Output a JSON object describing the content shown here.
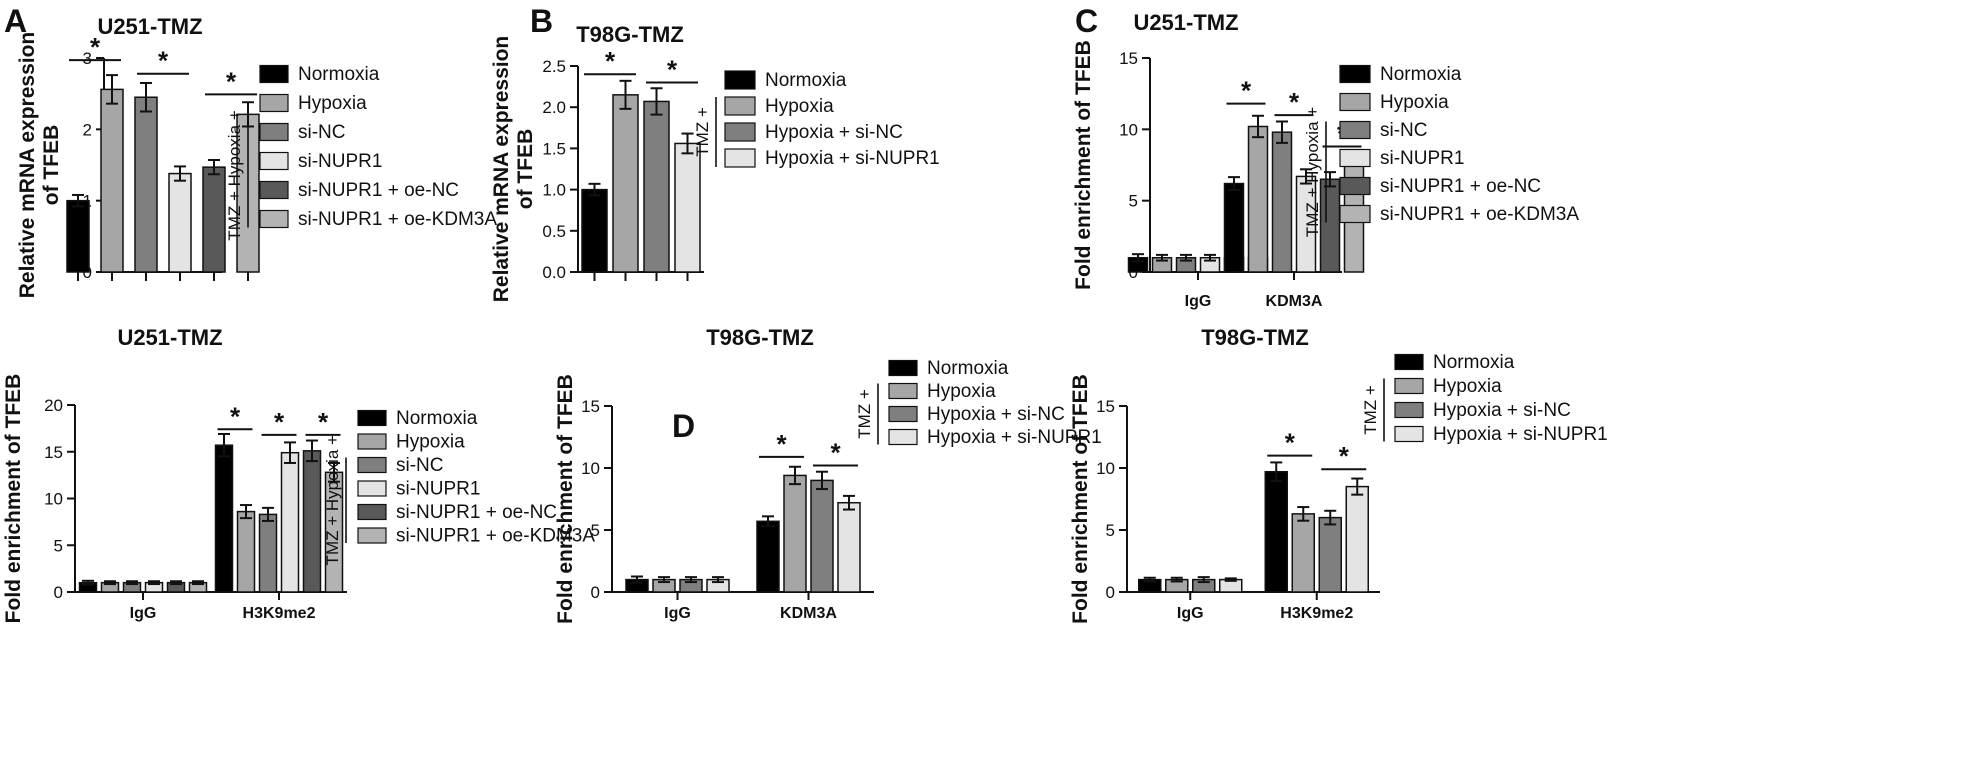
{
  "colors": {
    "Normoxia": "#000000",
    "Hypoxia": "#a6a6a6",
    "si-NC": "#7f7f7f",
    "si-NUPR1": "#e4e4e4",
    "si-NUPR1 + oe-NC": "#595959",
    "si-NUPR1 + oe-KDM3A": "#b3b3b3",
    "Hypoxia + si-NC": "#7f7f7f",
    "Hypoxia + si-NUPR1": "#e4e4e4"
  },
  "panel_letters": [
    "A",
    "B",
    "C",
    "D"
  ],
  "chart_data": [
    {
      "id": "A",
      "type": "bar",
      "title": "U251-TMZ",
      "ylabel": "Relative mRNA expression\nof TFEB",
      "xlabel": "",
      "ylim": [
        0,
        3
      ],
      "yticks": [
        0,
        1,
        2,
        3
      ],
      "categories": [
        ""
      ],
      "series": [
        {
          "name": "Normoxia",
          "values": [
            1.0
          ],
          "errors": [
            0.08
          ]
        },
        {
          "name": "Hypoxia",
          "values": [
            2.56
          ],
          "errors": [
            0.2
          ]
        },
        {
          "name": "si-NC",
          "values": [
            2.45
          ],
          "errors": [
            0.2
          ]
        },
        {
          "name": "si-NUPR1",
          "values": [
            1.38
          ],
          "errors": [
            0.1
          ]
        },
        {
          "name": "si-NUPR1 + oe-NC",
          "values": [
            1.47
          ],
          "errors": [
            0.1
          ]
        },
        {
          "name": "si-NUPR1 + oe-KDM3A",
          "values": [
            2.21
          ],
          "errors": [
            0.17
          ]
        }
      ],
      "significance": [
        {
          "category": 0,
          "from": 0,
          "to": 1,
          "y": 2.97,
          "label": "*"
        },
        {
          "category": 0,
          "from": 2,
          "to": 3,
          "y": 2.78,
          "label": "*"
        },
        {
          "category": 0,
          "from": 4,
          "to": 5,
          "y": 2.49,
          "label": "*"
        }
      ],
      "group_label": "TMZ + Hypoxia +",
      "group_first_index": 2
    },
    {
      "id": "B",
      "type": "bar",
      "title": "T98G-TMZ",
      "ylabel": "Relative mRNA expression\nof TFEB",
      "xlabel": "",
      "ylim": [
        0,
        2.5
      ],
      "yticks": [
        0.0,
        0.5,
        1.0,
        1.5,
        2.0,
        2.5
      ],
      "categories": [
        ""
      ],
      "series": [
        {
          "name": "Normoxia",
          "values": [
            1.0
          ],
          "errors": [
            0.07
          ]
        },
        {
          "name": "Hypoxia",
          "values": [
            2.15
          ],
          "errors": [
            0.17
          ]
        },
        {
          "name": "Hypoxia + si-NC",
          "values": [
            2.07
          ],
          "errors": [
            0.16
          ]
        },
        {
          "name": "Hypoxia + si-NUPR1",
          "values": [
            1.56
          ],
          "errors": [
            0.12
          ]
        }
      ],
      "significance": [
        {
          "category": 0,
          "from": 0,
          "to": 1,
          "y": 2.4,
          "label": "*"
        },
        {
          "category": 0,
          "from": 2,
          "to": 3,
          "y": 2.3,
          "label": "*"
        }
      ],
      "group_label": "TMZ +",
      "group_first_index": 1
    },
    {
      "id": "C",
      "type": "bar",
      "title": "U251-TMZ",
      "ylabel": "Fold enrichment of TFEB",
      "xlabel": "",
      "ylim": [
        0,
        15
      ],
      "yticks": [
        0,
        5,
        10,
        15
      ],
      "categories": [
        "IgG",
        "KDM3A"
      ],
      "series": [
        {
          "name": "Normoxia",
          "values": [
            1.0,
            6.2
          ],
          "errors": [
            0.25,
            0.45
          ]
        },
        {
          "name": "Hypoxia",
          "values": [
            1.0,
            10.2
          ],
          "errors": [
            0.2,
            0.75
          ]
        },
        {
          "name": "si-NC",
          "values": [
            1.0,
            9.8
          ],
          "errors": [
            0.2,
            0.75
          ]
        },
        {
          "name": "si-NUPR1",
          "values": [
            1.0,
            6.7
          ],
          "errors": [
            0.2,
            0.5
          ]
        },
        {
          "name": "si-NUPR1 + oe-NC",
          "values": [
            1.0,
            6.5
          ],
          "errors": [
            0.2,
            0.5
          ]
        },
        {
          "name": "si-NUPR1 + oe-KDM3A",
          "values": [
            1.0,
            7.8
          ],
          "errors": [
            0.2,
            0.35
          ]
        }
      ],
      "significance": [
        {
          "category": 1,
          "from": 0,
          "to": 1,
          "y": 11.8,
          "label": "*"
        },
        {
          "category": 1,
          "from": 2,
          "to": 3,
          "y": 11.0,
          "label": "*"
        },
        {
          "category": 1,
          "from": 4,
          "to": 5,
          "y": 8.8,
          "label": "*"
        }
      ],
      "group_label": "TMZ + Hypoxia +",
      "group_first_index": 2
    },
    {
      "id": "A2",
      "type": "bar",
      "title": "U251-TMZ",
      "ylabel": "Fold enrichment of TFEB",
      "xlabel": "",
      "ylim": [
        0,
        20
      ],
      "yticks": [
        0,
        5,
        10,
        15,
        20
      ],
      "categories": [
        "IgG",
        "H3K9me2"
      ],
      "series": [
        {
          "name": "Normoxia",
          "values": [
            1.0,
            15.7
          ],
          "errors": [
            0.2,
            1.2
          ]
        },
        {
          "name": "Hypoxia",
          "values": [
            1.0,
            8.6
          ],
          "errors": [
            0.15,
            0.7
          ]
        },
        {
          "name": "si-NC",
          "values": [
            1.0,
            8.3
          ],
          "errors": [
            0.15,
            0.7
          ]
        },
        {
          "name": "si-NUPR1",
          "values": [
            1.0,
            14.9
          ],
          "errors": [
            0.15,
            1.1
          ]
        },
        {
          "name": "si-NUPR1 + oe-NC",
          "values": [
            1.0,
            15.1
          ],
          "errors": [
            0.15,
            1.1
          ]
        },
        {
          "name": "si-NUPR1 + oe-KDM3A",
          "values": [
            1.0,
            12.8
          ],
          "errors": [
            0.15,
            1.0
          ]
        }
      ],
      "significance": [
        {
          "category": 1,
          "from": 0,
          "to": 1,
          "y": 17.4,
          "label": "*"
        },
        {
          "category": 1,
          "from": 2,
          "to": 3,
          "y": 16.8,
          "label": "*"
        },
        {
          "category": 1,
          "from": 4,
          "to": 5,
          "y": 16.8,
          "label": "*"
        }
      ],
      "group_label": "TMZ + Hypoxia +",
      "group_first_index": 2
    },
    {
      "id": "D1",
      "type": "bar",
      "title": "T98G-TMZ",
      "ylabel": "Fold enrichment of TFEB",
      "xlabel": "",
      "ylim": [
        0,
        15
      ],
      "yticks": [
        0,
        5,
        10,
        15
      ],
      "categories": [
        "IgG",
        "KDM3A"
      ],
      "series": [
        {
          "name": "Normoxia",
          "values": [
            1.0,
            5.7
          ],
          "errors": [
            0.25,
            0.4
          ]
        },
        {
          "name": "Hypoxia",
          "values": [
            1.0,
            9.4
          ],
          "errors": [
            0.2,
            0.7
          ]
        },
        {
          "name": "Hypoxia + si-NC",
          "values": [
            1.0,
            9.0
          ],
          "errors": [
            0.2,
            0.7
          ]
        },
        {
          "name": "Hypoxia + si-NUPR1",
          "values": [
            1.0,
            7.2
          ],
          "errors": [
            0.2,
            0.55
          ]
        }
      ],
      "significance": [
        {
          "category": 1,
          "from": 0,
          "to": 1,
          "y": 10.9,
          "label": "*"
        },
        {
          "category": 1,
          "from": 2,
          "to": 3,
          "y": 10.2,
          "label": "*"
        }
      ],
      "group_label": "TMZ +",
      "group_first_index": 1
    },
    {
      "id": "D2",
      "type": "bar",
      "title": "T98G-TMZ",
      "ylabel": "Fold enrichment of TFEB",
      "xlabel": "",
      "ylim": [
        0,
        15
      ],
      "yticks": [
        0,
        5,
        10,
        15
      ],
      "categories": [
        "IgG",
        "H3K9me2"
      ],
      "series": [
        {
          "name": "Normoxia",
          "values": [
            1.0,
            9.7
          ],
          "errors": [
            0.15,
            0.75
          ]
        },
        {
          "name": "Hypoxia",
          "values": [
            1.0,
            6.3
          ],
          "errors": [
            0.15,
            0.55
          ]
        },
        {
          "name": "Hypoxia + si-NC",
          "values": [
            1.0,
            6.0
          ],
          "errors": [
            0.2,
            0.55
          ]
        },
        {
          "name": "Hypoxia + si-NUPR1",
          "values": [
            1.0,
            8.5
          ],
          "errors": [
            0.1,
            0.65
          ]
        }
      ],
      "significance": [
        {
          "category": 1,
          "from": 0,
          "to": 1,
          "y": 11.0,
          "label": "*"
        },
        {
          "category": 1,
          "from": 2,
          "to": 3,
          "y": 9.9,
          "label": "*"
        }
      ],
      "group_label": "TMZ +",
      "group_first_index": 1
    }
  ]
}
